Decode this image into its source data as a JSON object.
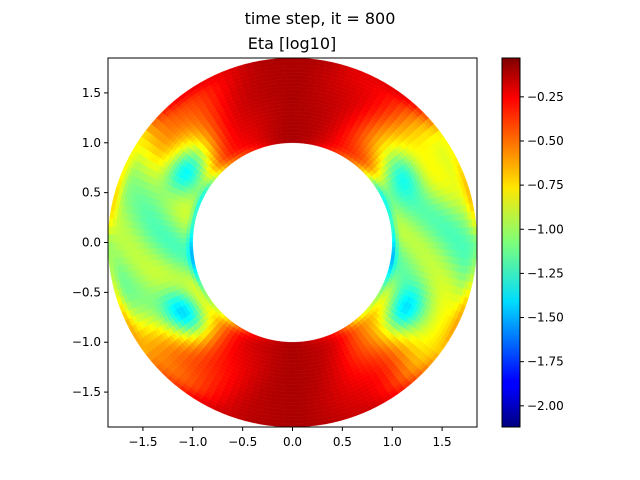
{
  "figure": {
    "suptitle": "time step, it = 800"
  },
  "chart_data": {
    "type": "heatmap",
    "title": "Eta [log10]",
    "geometry": "annulus",
    "inner_radius": 1.0,
    "outer_radius": 1.85,
    "xlim": [
      -1.85,
      1.85
    ],
    "ylim": [
      -1.85,
      1.85
    ],
    "x_ticks": [
      -1.5,
      -1.0,
      -0.5,
      0.0,
      0.5,
      1.0,
      1.5
    ],
    "x_tick_labels": [
      "−1.5",
      "−1.0",
      "−0.5",
      "0.0",
      "0.5",
      "1.0",
      "1.5"
    ],
    "y_ticks": [
      1.5,
      1.0,
      0.5,
      0.0,
      -0.5,
      -1.0,
      -1.5
    ],
    "y_tick_labels": [
      "1.5",
      "1.0",
      "0.5",
      "0.0",
      "−0.5",
      "−1.0",
      "−1.5"
    ],
    "colormap": "jet",
    "colorbar": {
      "vmin": -2.12,
      "vmax": -0.03,
      "ticks": [
        -0.25,
        -0.5,
        -0.75,
        -1.0,
        -1.25,
        -1.5,
        -1.75,
        -2.0
      ],
      "tick_labels": [
        "−0.25",
        "−0.50",
        "−0.75",
        "−1.00",
        "−1.25",
        "−1.50",
        "−1.75",
        "−2.00"
      ]
    },
    "grid": false
  }
}
